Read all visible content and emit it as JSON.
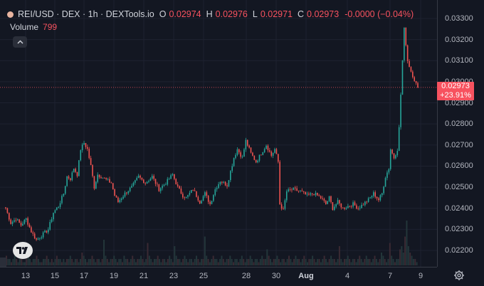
{
  "legend": {
    "symbol": "REI/USD · DEX · 1h · DEXTools.io",
    "open_label": "O",
    "open": "0.02974",
    "high_label": "H",
    "high": "0.02976",
    "low_label": "L",
    "low": "0.02971",
    "close_label": "C",
    "close": "0.02973",
    "change": "-0.0000 (−0.04%)"
  },
  "volume": {
    "label": "Volume",
    "value": "799"
  },
  "collapse_icon": "chevron-up-icon",
  "price_tag": {
    "price": "0.02973",
    "change": "+23.91%",
    "color": "#f7525f"
  },
  "colors": {
    "up": "#26a69a",
    "down": "#ef5350",
    "background": "#131722",
    "grid": "#1e2230"
  },
  "chart_data": {
    "type": "candlestick",
    "y_ticks": [
      "0.03300",
      "0.03200",
      "0.03100",
      "0.03000",
      "0.02900",
      "0.02800",
      "0.02700",
      "0.02600",
      "0.02500",
      "0.02400",
      "0.02300",
      "0.02200"
    ],
    "ylim": [
      0.0212,
      0.0336
    ],
    "x_ticks": [
      "13",
      "15",
      "17",
      "19",
      "21",
      "23",
      "25",
      "28",
      "30",
      "Aug",
      "4",
      "7",
      "9"
    ],
    "last_price": 0.02973,
    "close_path": [
      [
        0,
        0.024
      ],
      [
        3,
        0.0233
      ],
      [
        6,
        0.0235
      ],
      [
        9,
        0.0232
      ],
      [
        12,
        0.0235
      ],
      [
        15,
        0.0229
      ],
      [
        18,
        0.0225
      ],
      [
        21,
        0.0227
      ],
      [
        25,
        0.023
      ],
      [
        28,
        0.0238
      ],
      [
        31,
        0.0241
      ],
      [
        34,
        0.0247
      ],
      [
        36,
        0.0255
      ],
      [
        38,
        0.0254
      ],
      [
        40,
        0.0259
      ],
      [
        42,
        0.0256
      ],
      [
        44,
        0.0268
      ],
      [
        46,
        0.0271
      ],
      [
        48,
        0.0268
      ],
      [
        50,
        0.026
      ],
      [
        52,
        0.025
      ],
      [
        54,
        0.0256
      ],
      [
        58,
        0.0254
      ],
      [
        62,
        0.0252
      ],
      [
        64,
        0.0246
      ],
      [
        66,
        0.0243
      ],
      [
        70,
        0.0247
      ],
      [
        74,
        0.025
      ],
      [
        78,
        0.0255
      ],
      [
        82,
        0.0252
      ],
      [
        86,
        0.0255
      ],
      [
        90,
        0.0249
      ],
      [
        94,
        0.0252
      ],
      [
        98,
        0.0256
      ],
      [
        101,
        0.025
      ],
      [
        104,
        0.0246
      ],
      [
        106,
        0.0245
      ],
      [
        110,
        0.0249
      ],
      [
        114,
        0.0243
      ],
      [
        117,
        0.0247
      ],
      [
        120,
        0.0242
      ],
      [
        123,
        0.0249
      ],
      [
        126,
        0.0253
      ],
      [
        130,
        0.0251
      ],
      [
        134,
        0.0264
      ],
      [
        136,
        0.0268
      ],
      [
        139,
        0.0264
      ],
      [
        141,
        0.0272
      ],
      [
        144,
        0.0266
      ],
      [
        147,
        0.0262
      ],
      [
        150,
        0.0266
      ],
      [
        153,
        0.027
      ],
      [
        156,
        0.0265
      ],
      [
        158,
        0.0268
      ],
      [
        160,
        0.0262
      ],
      [
        161,
        0.0242
      ],
      [
        163,
        0.0239
      ],
      [
        165,
        0.0248
      ],
      [
        169,
        0.0249
      ],
      [
        173,
        0.0248
      ],
      [
        177,
        0.0246
      ],
      [
        181,
        0.0247
      ],
      [
        185,
        0.0245
      ],
      [
        188,
        0.0242
      ],
      [
        190,
        0.0245
      ],
      [
        192,
        0.024
      ],
      [
        195,
        0.0243
      ],
      [
        198,
        0.024
      ],
      [
        201,
        0.0241
      ],
      [
        204,
        0.0242
      ],
      [
        207,
        0.024
      ],
      [
        210,
        0.0242
      ],
      [
        213,
        0.0244
      ],
      [
        216,
        0.0247
      ],
      [
        219,
        0.0244
      ],
      [
        221,
        0.0247
      ],
      [
        223,
        0.0255
      ],
      [
        225,
        0.0259
      ],
      [
        226,
        0.0268
      ],
      [
        228,
        0.0264
      ],
      [
        230,
        0.0268
      ],
      [
        231,
        0.0278
      ],
      [
        233,
        0.031
      ],
      [
        234,
        0.0325
      ],
      [
        235,
        0.0318
      ],
      [
        236,
        0.031
      ],
      [
        238,
        0.0305
      ],
      [
        240,
        0.0301
      ],
      [
        242,
        0.0297
      ]
    ],
    "volume_path": [
      3,
      2,
      2,
      1,
      2,
      3,
      2,
      1,
      2,
      2,
      1,
      1,
      2,
      3,
      2,
      1,
      2,
      2,
      3,
      2,
      1,
      1,
      2,
      2,
      3,
      2,
      1,
      2,
      1,
      2,
      3,
      2,
      2,
      1,
      2,
      1,
      2,
      2,
      3,
      2,
      1,
      2,
      2,
      1,
      2,
      4,
      3,
      2,
      1,
      2,
      2,
      3,
      2,
      1,
      2,
      2,
      1,
      2,
      8,
      3,
      2,
      1,
      2,
      2,
      3,
      2,
      1,
      2,
      2,
      1,
      3,
      2,
      2,
      1,
      2,
      3,
      2,
      1,
      2,
      2,
      3,
      2,
      1,
      2,
      7,
      3,
      2,
      1,
      2,
      2,
      3,
      2,
      1,
      2,
      2,
      1,
      2,
      3,
      2,
      1,
      6,
      3,
      2,
      2,
      1,
      2,
      3,
      2,
      1,
      2,
      2,
      1,
      2,
      3,
      2,
      1,
      2,
      2,
      9,
      3,
      2,
      1,
      2,
      3,
      2,
      2,
      1,
      2,
      3,
      2,
      1,
      2,
      2,
      3,
      2,
      1,
      2,
      2,
      1,
      2,
      3,
      2,
      1,
      2,
      2,
      3,
      2,
      1,
      2,
      2,
      1,
      2,
      3,
      2,
      2,
      5,
      3,
      2,
      1,
      2,
      2,
      3,
      2,
      1,
      2,
      2,
      1,
      2,
      3,
      2,
      1,
      2,
      3,
      2,
      2,
      1,
      2,
      3,
      2,
      1,
      2,
      2,
      3,
      2,
      1,
      2,
      2,
      1,
      2,
      3,
      2,
      1,
      2,
      3,
      2,
      2,
      1,
      2,
      6,
      2,
      1,
      2,
      2,
      3,
      2,
      1,
      2,
      2,
      1,
      2,
      3,
      2,
      1,
      2,
      3,
      2,
      2,
      1,
      2,
      3,
      2,
      1,
      2,
      4,
      3,
      2,
      1,
      2,
      7,
      3,
      2,
      1,
      2,
      2,
      5,
      6,
      4,
      9,
      14,
      6,
      4,
      3,
      2,
      2,
      1
    ]
  },
  "settings_icon": "gear-icon",
  "logo": "tradingview-logo-icon"
}
